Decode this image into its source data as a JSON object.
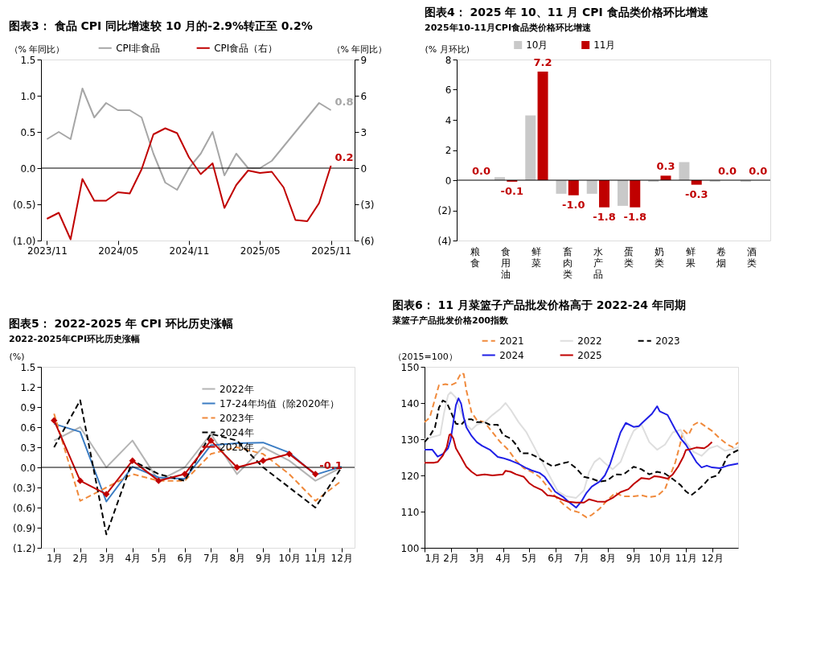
{
  "chart_data": [
    {
      "type": "line",
      "title": "图表3：  食品 CPI 同比增速较 10 月的-2.9%转正至 0.2%",
      "ylabel": "（% 年同比）",
      "y2label": "（% 年同比）",
      "categories": [
        "2023/11",
        null,
        null,
        null,
        null,
        null,
        "2024/05",
        null,
        null,
        null,
        null,
        null,
        "2024/11",
        null,
        null,
        null,
        null,
        null,
        "2025/05",
        null,
        null,
        null,
        null,
        null,
        "2025/11"
      ],
      "series": [
        {
          "name": "CPI非食品",
          "color": "#a6a6a6",
          "values": [
            0.4,
            0.5,
            0.4,
            1.1,
            0.7,
            0.9,
            0.8,
            0.8,
            0.7,
            0.2,
            -0.2,
            -0.3,
            0.0,
            0.2,
            0.5,
            -0.1,
            0.2,
            0.0,
            0.0,
            0.1,
            0.3,
            0.5,
            0.7,
            0.9,
            0.8
          ],
          "value_labels": [
            null,
            null,
            null,
            null,
            null,
            null,
            null,
            null,
            null,
            null,
            null,
            null,
            null,
            null,
            null,
            null,
            null,
            null,
            null,
            null,
            null,
            null,
            null,
            null,
            "0.8"
          ]
        },
        {
          "name": "CPI食品（右）",
          "color": "#c00000",
          "axis": "y2",
          "values": [
            -4.2,
            -3.7,
            -5.9,
            -0.9,
            -2.7,
            -2.7,
            -2.0,
            -2.1,
            -0.1,
            2.8,
            3.3,
            2.9,
            0.9,
            -0.5,
            0.4,
            -3.3,
            -1.4,
            -0.2,
            -0.4,
            -0.3,
            -1.6,
            -4.3,
            -4.4,
            -2.9,
            0.2
          ],
          "value_labels": [
            null,
            null,
            null,
            null,
            null,
            null,
            null,
            null,
            null,
            null,
            null,
            null,
            null,
            null,
            null,
            null,
            null,
            null,
            null,
            null,
            null,
            null,
            null,
            null,
            "0.2"
          ]
        }
      ],
      "ylim": [
        -1.0,
        1.5
      ],
      "yticks": [
        {
          "value": -1.0,
          "label": "(1.0)"
        },
        {
          "value": -0.5,
          "label": "(0.5)"
        },
        {
          "value": 0,
          "label": "0.0"
        },
        0.5,
        {
          "value": 1,
          "label": "1.0"
        },
        1.5
      ],
      "y2lim": [
        -6,
        9
      ],
      "y2ticks": [
        {
          "value": -6,
          "label": "(6)"
        },
        {
          "value": -3,
          "label": "(3)"
        },
        0,
        3,
        6,
        9
      ],
      "legend": "top",
      "line_style": "solid"
    },
    {
      "type": "bar",
      "title": "图表4：  2025 年 10、11 月 CPI 食品类价格环比增速",
      "subtitle": "2025年10-11月CPI食品类价格环比增速",
      "ylabel": "(% 月环比)",
      "categories": [
        "粮食",
        "食用油",
        "鲜菜",
        "畜肉类",
        "水产品",
        "蛋类",
        "奶类",
        "鲜果",
        "卷烟",
        "酒类"
      ],
      "series": [
        {
          "name": "10月",
          "color": "#c9c9c9",
          "values": [
            0.0,
            0.2,
            4.3,
            -0.9,
            -0.9,
            -1.7,
            -0.1,
            1.2,
            -0.1,
            -0.1
          ]
        },
        {
          "name": "11月",
          "color": "#c00000",
          "values": [
            0.0,
            -0.1,
            7.2,
            -1.0,
            -1.8,
            -1.8,
            0.3,
            -0.3,
            0.0,
            0.0
          ],
          "value_labels": [
            "0.0",
            "-0.1",
            "7.2",
            "-1.0",
            "-1.8",
            "-1.8",
            "0.3",
            "-0.3",
            "0.0",
            "0.0"
          ]
        }
      ],
      "ylim": [
        -4,
        8
      ],
      "yticks": [
        {
          "value": -4,
          "label": "(4)"
        },
        {
          "value": -2,
          "label": "(2)"
        },
        0,
        2,
        4,
        6,
        8
      ],
      "legend": "top"
    },
    {
      "type": "line",
      "title": "图表5：  2022-2025 年 CPI 环比历史涨幅",
      "subtitle": "2022-2025年CPI环比历史涨幅",
      "ylabel": "(%)",
      "categories": [
        "1月",
        "2月",
        "3月",
        "4月",
        "5月",
        "6月",
        "7月",
        "8月",
        "9月",
        "10月",
        "11月",
        "12月"
      ],
      "series": [
        {
          "name": "2022年",
          "color": "#b4b4b4",
          "line_style": "solid",
          "values": [
            0.4,
            0.6,
            0.0,
            0.4,
            -0.2,
            0.0,
            0.5,
            -0.1,
            0.3,
            0.1,
            -0.2,
            0.0
          ]
        },
        {
          "name": "17-24年均值（除2020年）",
          "color": "#3a7cc3",
          "line_style": "solid",
          "values": [
            0.65,
            0.53,
            -0.51,
            0.01,
            -0.15,
            -0.17,
            0.33,
            0.36,
            0.37,
            0.22,
            -0.11,
            0.01
          ]
        },
        {
          "name": "2023年",
          "color": "#f08a3c",
          "line_style": "dashed",
          "values": [
            0.8,
            -0.5,
            -0.3,
            -0.1,
            -0.2,
            -0.2,
            0.2,
            0.3,
            0.2,
            -0.1,
            -0.5,
            -0.2
          ]
        },
        {
          "name": "2024年",
          "color": "#000000",
          "line_style": "dashed",
          "values": [
            0.3,
            1.0,
            -1.0,
            0.1,
            -0.1,
            -0.2,
            0.5,
            0.4,
            0.0,
            -0.3,
            -0.6,
            0.0
          ]
        },
        {
          "name": "2025年",
          "color": "#c00000",
          "line_style": "solid",
          "marker": "diamond",
          "values": [
            0.7,
            -0.2,
            -0.4,
            0.1,
            -0.2,
            -0.1,
            0.4,
            0.0,
            0.1,
            0.2,
            -0.1,
            null
          ],
          "value_labels": [
            null,
            null,
            null,
            null,
            null,
            null,
            null,
            null,
            null,
            null,
            "-0.1",
            null
          ]
        }
      ],
      "ylim": [
        -1.2,
        1.5
      ],
      "yticks": [
        {
          "value": -1.2,
          "label": "(1.2)"
        },
        {
          "value": -0.9,
          "label": "(0.9)"
        },
        {
          "value": -0.6,
          "label": "(0.6)"
        },
        {
          "value": -0.3,
          "label": "(0.3)"
        },
        {
          "value": 0,
          "label": "0.0"
        },
        0.3,
        0.6,
        0.9,
        1.2,
        1.5
      ],
      "legend": "top right"
    },
    {
      "type": "line",
      "title": "图表6：  11 月菜篮子产品批发价格高于 2022-24 年同期",
      "subtitle": "菜篮子产品批发价格200指数",
      "ylabel": "（2015=100）",
      "xlim": [
        1,
        13
      ],
      "xticks": [
        {
          "value": 1,
          "label": "1月"
        },
        {
          "value": 2,
          "label": "2月"
        },
        {
          "value": 3,
          "label": "3月"
        },
        {
          "value": 4,
          "label": "4月"
        },
        {
          "value": 5,
          "label": "5月"
        },
        {
          "value": 6,
          "label": "6月"
        },
        {
          "value": 7,
          "label": "7月"
        },
        {
          "value": 8,
          "label": "8月"
        },
        {
          "value": 9,
          "label": "9月"
        },
        {
          "value": 10,
          "label": "10月"
        },
        {
          "value": 11,
          "label": "11月"
        },
        {
          "value": 12,
          "label": "12月"
        }
      ],
      "ylim": [
        100,
        150
      ],
      "yticks": [
        100,
        110,
        120,
        130,
        140,
        150
      ],
      "legend": "top",
      "series": [
        {
          "name": "2021",
          "color": "#f08a3c",
          "line_style": "dashed",
          "x": [
            1.0,
            1.2,
            1.4,
            1.55,
            1.8,
            2.0,
            2.2,
            2.4,
            2.5,
            2.6,
            2.8,
            3.0,
            3.3,
            3.6,
            3.9,
            4.2,
            4.5,
            4.8,
            5.1,
            5.4,
            5.7,
            6.0,
            6.3,
            6.6,
            6.9,
            7.2,
            7.4,
            7.7,
            8.0,
            8.3,
            8.6,
            9.0,
            9.3,
            9.6,
            9.9,
            10.2,
            10.4,
            10.6,
            10.8,
            10.9,
            11.1,
            11.3,
            11.5,
            11.8,
            12.0,
            12.3,
            12.6,
            12.8,
            13.0
          ],
          "values": [
            134.7,
            136,
            141.1,
            144.9,
            145.2,
            144.9,
            145.6,
            148.3,
            148,
            143.5,
            137.4,
            135.3,
            134.7,
            131.9,
            129.2,
            127.1,
            124.1,
            122,
            121,
            119.6,
            116.9,
            114.2,
            112.1,
            110.4,
            109.8,
            108.4,
            109.1,
            110.8,
            113.2,
            115.2,
            114.2,
            114.2,
            114.5,
            114,
            114.3,
            116.2,
            120,
            123.7,
            129.2,
            132.6,
            131.2,
            134,
            134.8,
            133.3,
            132.3,
            130.2,
            128.5,
            127.8,
            129.1
          ]
        },
        {
          "name": "2022",
          "color": "#dedede",
          "line_style": "solid",
          "x": [
            1.0,
            1.3,
            1.6,
            1.75,
            1.9,
            2.0,
            2.2,
            2.4,
            2.6,
            2.8,
            3.0,
            3.3,
            3.6,
            3.9,
            4.1,
            4.3,
            4.6,
            4.9,
            5.2,
            5.5,
            5.8,
            6.1,
            6.4,
            6.8,
            7.1,
            7.3,
            7.5,
            7.7,
            7.9,
            8.2,
            8.5,
            8.8,
            9.0,
            9.3,
            9.6,
            9.9,
            10.2,
            10.5,
            10.8,
            11.0,
            11.3,
            11.6,
            11.9,
            12.2,
            12.5,
            12.8,
            13.0
          ],
          "values": [
            129.9,
            130.6,
            131.2,
            137.4,
            142.2,
            143,
            141.5,
            137.4,
            134,
            132.6,
            134,
            134.7,
            136.7,
            138.4,
            140,
            138.1,
            134.7,
            131.9,
            127.8,
            123.7,
            119.6,
            115.6,
            114.3,
            113.8,
            115.9,
            121,
            123.7,
            124.8,
            123.4,
            121.7,
            123.7,
            129.2,
            132.3,
            134,
            129.2,
            127.1,
            128.5,
            131.9,
            132.6,
            129.2,
            126.5,
            125.4,
            127.5,
            128.2,
            126.8,
            127.3,
            127.8
          ]
        },
        {
          "name": "2023",
          "color": "#000000",
          "line_style": "dashed",
          "x": [
            1.0,
            1.2,
            1.4,
            1.55,
            1.7,
            1.85,
            2.0,
            2.2,
            2.4,
            2.6,
            2.8,
            3.0,
            3.3,
            3.5,
            3.8,
            4.0,
            4.3,
            4.5,
            4.7,
            5.0,
            5.3,
            5.6,
            5.9,
            6.2,
            6.5,
            6.8,
            7.1,
            7.4,
            7.7,
            8.0,
            8.3,
            8.6,
            9.0,
            9.3,
            9.6,
            9.9,
            10.2,
            10.5,
            10.8,
            11.0,
            11.2,
            11.4,
            11.7,
            11.9,
            12.2,
            12.4,
            12.6,
            12.8,
            13.0
          ],
          "values": [
            129.2,
            130.9,
            133.3,
            138.7,
            140.7,
            140.1,
            137.7,
            134.3,
            134,
            135.5,
            135.5,
            134.7,
            134.7,
            134,
            134,
            131.2,
            130.2,
            128.5,
            126.1,
            126.1,
            125.1,
            123.7,
            122.5,
            123.2,
            123.7,
            122,
            119.6,
            119.1,
            118.3,
            118.6,
            120.3,
            120.2,
            122.4,
            121.7,
            120.3,
            121,
            120.5,
            119,
            117.3,
            115.6,
            114.5,
            115.6,
            117.6,
            119.3,
            120,
            122.4,
            125.4,
            126.3,
            127
          ]
        },
        {
          "name": "2024",
          "color": "#1f1fe6",
          "line_style": "solid",
          "x": [
            1.0,
            1.3,
            1.5,
            1.7,
            1.9,
            2.0,
            2.1,
            2.2,
            2.3,
            2.4,
            2.5,
            2.6,
            2.8,
            3.0,
            3.2,
            3.5,
            3.8,
            4.0,
            4.3,
            4.6,
            4.9,
            5.1,
            5.4,
            5.6,
            5.8,
            6.0,
            6.3,
            6.5,
            6.8,
            7.0,
            7.2,
            7.4,
            7.7,
            7.9,
            8.1,
            8.3,
            8.5,
            8.7,
            9.0,
            9.2,
            9.4,
            9.7,
            9.9,
            10.0,
            10.3,
            10.6,
            10.8,
            11.0,
            11.2,
            11.4,
            11.6,
            11.8,
            12.0,
            12.3,
            12.6,
            13.0
          ],
          "values": [
            127.1,
            127.1,
            125.2,
            125.9,
            127.5,
            129.9,
            134.6,
            139.4,
            141.3,
            139.8,
            136,
            133.3,
            130.9,
            129.2,
            128.2,
            127.1,
            125.1,
            124.8,
            124.1,
            123.2,
            122.0,
            121.4,
            120.7,
            119.6,
            117.6,
            115.5,
            114.1,
            112.8,
            111.1,
            112.8,
            115.2,
            116.9,
            118.3,
            120.0,
            123.1,
            127.5,
            131.9,
            134.5,
            133.4,
            133.6,
            135,
            137,
            139.1,
            137.7,
            136.7,
            132.6,
            130.2,
            128.5,
            126.1,
            123.7,
            122.2,
            122.7,
            122.2,
            122,
            122.7,
            123.3
          ]
        },
        {
          "name": "2025",
          "color": "#c00000",
          "line_style": "solid",
          "x": [
            1.0,
            1.35,
            1.5,
            1.7,
            1.85,
            1.95,
            2.0,
            2.1,
            2.2,
            2.4,
            2.6,
            2.8,
            3.0,
            3.3,
            3.6,
            4.0,
            4.1,
            4.3,
            4.5,
            4.8,
            5.0,
            5.2,
            5.5,
            5.7,
            6.0,
            6.2,
            6.5,
            6.8,
            7.1,
            7.3,
            7.6,
            7.9,
            8.2,
            8.5,
            8.8,
            9.0,
            9.3,
            9.6,
            9.8,
            10.0,
            10.3,
            10.5,
            10.7,
            10.9,
            11.0,
            11.2,
            11.4,
            11.7,
            11.85,
            12.0
          ],
          "values": [
            123.5,
            123.5,
            123.7,
            125.5,
            127.8,
            131.2,
            131.4,
            130.2,
            127.5,
            125,
            122.4,
            121,
            120,
            120.3,
            120,
            120.3,
            121.3,
            121,
            120.3,
            119.6,
            117.9,
            116.9,
            115.9,
            114.5,
            114.2,
            113.5,
            112.7,
            112.5,
            112.5,
            113.4,
            112.8,
            112.7,
            113.8,
            115.4,
            116.2,
            117.6,
            119.3,
            119,
            119.8,
            119.6,
            119.1,
            120.3,
            122.4,
            125.1,
            127,
            127.3,
            127.7,
            127.5,
            128.2,
            129.2
          ]
        }
      ]
    }
  ]
}
